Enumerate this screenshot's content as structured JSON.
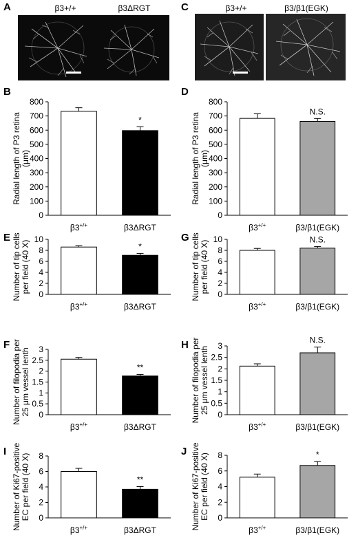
{
  "panels_images": [
    {
      "letter": "A",
      "labels": [
        "β3+/+",
        "β3ΔRGT"
      ]
    },
    {
      "letter": "C",
      "labels": [
        "β3+/+",
        "β3/β1(EGK)"
      ]
    }
  ],
  "colors": {
    "wt_bar": "#ffffff",
    "rgt_bar": "#000000",
    "egk_bar": "#a6a6a6",
    "retina_bg": "#0b0b0b",
    "vessel": "#d8d8d8"
  },
  "chart_data": [
    {
      "letter": "B",
      "type": "bar",
      "categories": [
        "β3+/+",
        "β3ΔRGT"
      ],
      "values": [
        733,
        597
      ],
      "errors": [
        25,
        27
      ],
      "annotations": [
        "",
        "*"
      ],
      "ylabel_lines": [
        "Radial length of P3 retina",
        "(μm)"
      ],
      "ylim": [
        0,
        800
      ],
      "yticks": [
        0,
        100,
        200,
        300,
        400,
        500,
        600,
        700,
        800
      ],
      "colors": [
        "#ffffff",
        "#000000"
      ]
    },
    {
      "letter": "D",
      "type": "bar",
      "categories": [
        "β3+/+",
        "β3/β1(EGK)"
      ],
      "values": [
        683,
        662
      ],
      "errors": [
        32,
        20
      ],
      "annotations": [
        "",
        "N.S."
      ],
      "ylabel_lines": [
        "Radial length of P3 retina",
        "(μm)"
      ],
      "ylim": [
        0,
        800
      ],
      "yticks": [
        0,
        100,
        200,
        300,
        400,
        500,
        600,
        700,
        800
      ],
      "colors": [
        "#ffffff",
        "#a6a6a6"
      ]
    },
    {
      "letter": "E",
      "type": "bar",
      "categories": [
        "β3+/+",
        "β3ΔRGT"
      ],
      "values": [
        8.6,
        7.1
      ],
      "errors": [
        0.25,
        0.35
      ],
      "annotations": [
        "",
        "*"
      ],
      "ylabel_lines": [
        "Number of tip cells",
        "per field (40 X)"
      ],
      "ylim": [
        0,
        10
      ],
      "yticks": [
        0,
        2,
        4,
        6,
        8,
        10
      ],
      "colors": [
        "#ffffff",
        "#000000"
      ]
    },
    {
      "letter": "G",
      "type": "bar",
      "categories": [
        "β3+/+",
        "β3/β1(EGK)"
      ],
      "values": [
        8.0,
        8.4
      ],
      "errors": [
        0.35,
        0.3
      ],
      "annotations": [
        "",
        "N.S."
      ],
      "ylabel_lines": [
        "Number of tip cells",
        "per field (40 X)"
      ],
      "ylim": [
        0,
        10
      ],
      "yticks": [
        0,
        2,
        4,
        6,
        8,
        10
      ],
      "colors": [
        "#ffffff",
        "#a6a6a6"
      ]
    },
    {
      "letter": "F",
      "type": "bar",
      "categories": [
        "β3+/+",
        "β3ΔRGT"
      ],
      "values": [
        2.55,
        1.78
      ],
      "errors": [
        0.08,
        0.07
      ],
      "annotations": [
        "",
        "**"
      ],
      "ylabel_lines": [
        "Number of filopodia per",
        "25 μm vessel lenth"
      ],
      "ylim": [
        0,
        3
      ],
      "yticks": [
        0,
        0.5,
        1,
        1.5,
        2,
        2.5,
        3
      ],
      "colors": [
        "#ffffff",
        "#000000"
      ]
    },
    {
      "letter": "H",
      "type": "bar",
      "categories": [
        "β3+/+",
        "β3/β1(EGK)"
      ],
      "values": [
        2.12,
        2.7
      ],
      "errors": [
        0.1,
        0.25
      ],
      "annotations": [
        "",
        "N.S."
      ],
      "ylabel_lines": [
        "Number of filopodia per",
        "25 μm vessel lenth"
      ],
      "ylim": [
        0,
        3
      ],
      "yticks": [
        0,
        0.5,
        1,
        1.5,
        2,
        2.5,
        3
      ],
      "colors": [
        "#ffffff",
        "#a6a6a6"
      ]
    },
    {
      "letter": "I",
      "type": "bar",
      "categories": [
        "β3+/+",
        "β3ΔRGT"
      ],
      "values": [
        6.0,
        3.7
      ],
      "errors": [
        0.4,
        0.35
      ],
      "annotations": [
        "",
        "**"
      ],
      "ylabel_lines": [
        "Number of Ki67-positive",
        "EC per field (40 X)"
      ],
      "ylim": [
        0,
        8
      ],
      "yticks": [
        0,
        2,
        4,
        6,
        8
      ],
      "colors": [
        "#ffffff",
        "#000000"
      ]
    },
    {
      "letter": "J",
      "type": "bar",
      "categories": [
        "β3+/+",
        "β3/β1(EGK)"
      ],
      "values": [
        5.2,
        6.7
      ],
      "errors": [
        0.4,
        0.5
      ],
      "annotations": [
        "",
        "*"
      ],
      "ylabel_lines": [
        "Number of Ki67-positive",
        "EC per field (40 X)"
      ],
      "ylim": [
        0,
        8
      ],
      "yticks": [
        0,
        2,
        4,
        6,
        8
      ],
      "colors": [
        "#ffffff",
        "#a6a6a6"
      ]
    }
  ]
}
